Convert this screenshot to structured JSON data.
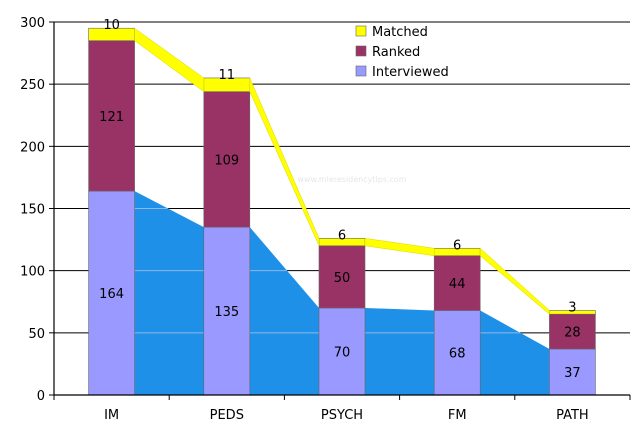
{
  "chart_data": {
    "type": "bar",
    "stacked": true,
    "categories": [
      "IM",
      "PEDS",
      "PSYCH",
      "FM",
      "PATH"
    ],
    "series": [
      {
        "name": "Interviewed",
        "values": [
          164,
          135,
          70,
          68,
          37
        ],
        "color": "#9999ff"
      },
      {
        "name": "Ranked",
        "values": [
          121,
          109,
          50,
          44,
          28
        ],
        "color": "#993366"
      },
      {
        "name": "Matched",
        "values": [
          10,
          11,
          6,
          6,
          3
        ],
        "color": "#ffff00"
      }
    ],
    "area_color": "#1e90e8",
    "ylim": [
      0,
      300
    ],
    "yticks": [
      0,
      50,
      100,
      150,
      200,
      250,
      300
    ],
    "grid": true,
    "legend_position": "top-right",
    "watermark": "www.mleresidencytips.com"
  }
}
